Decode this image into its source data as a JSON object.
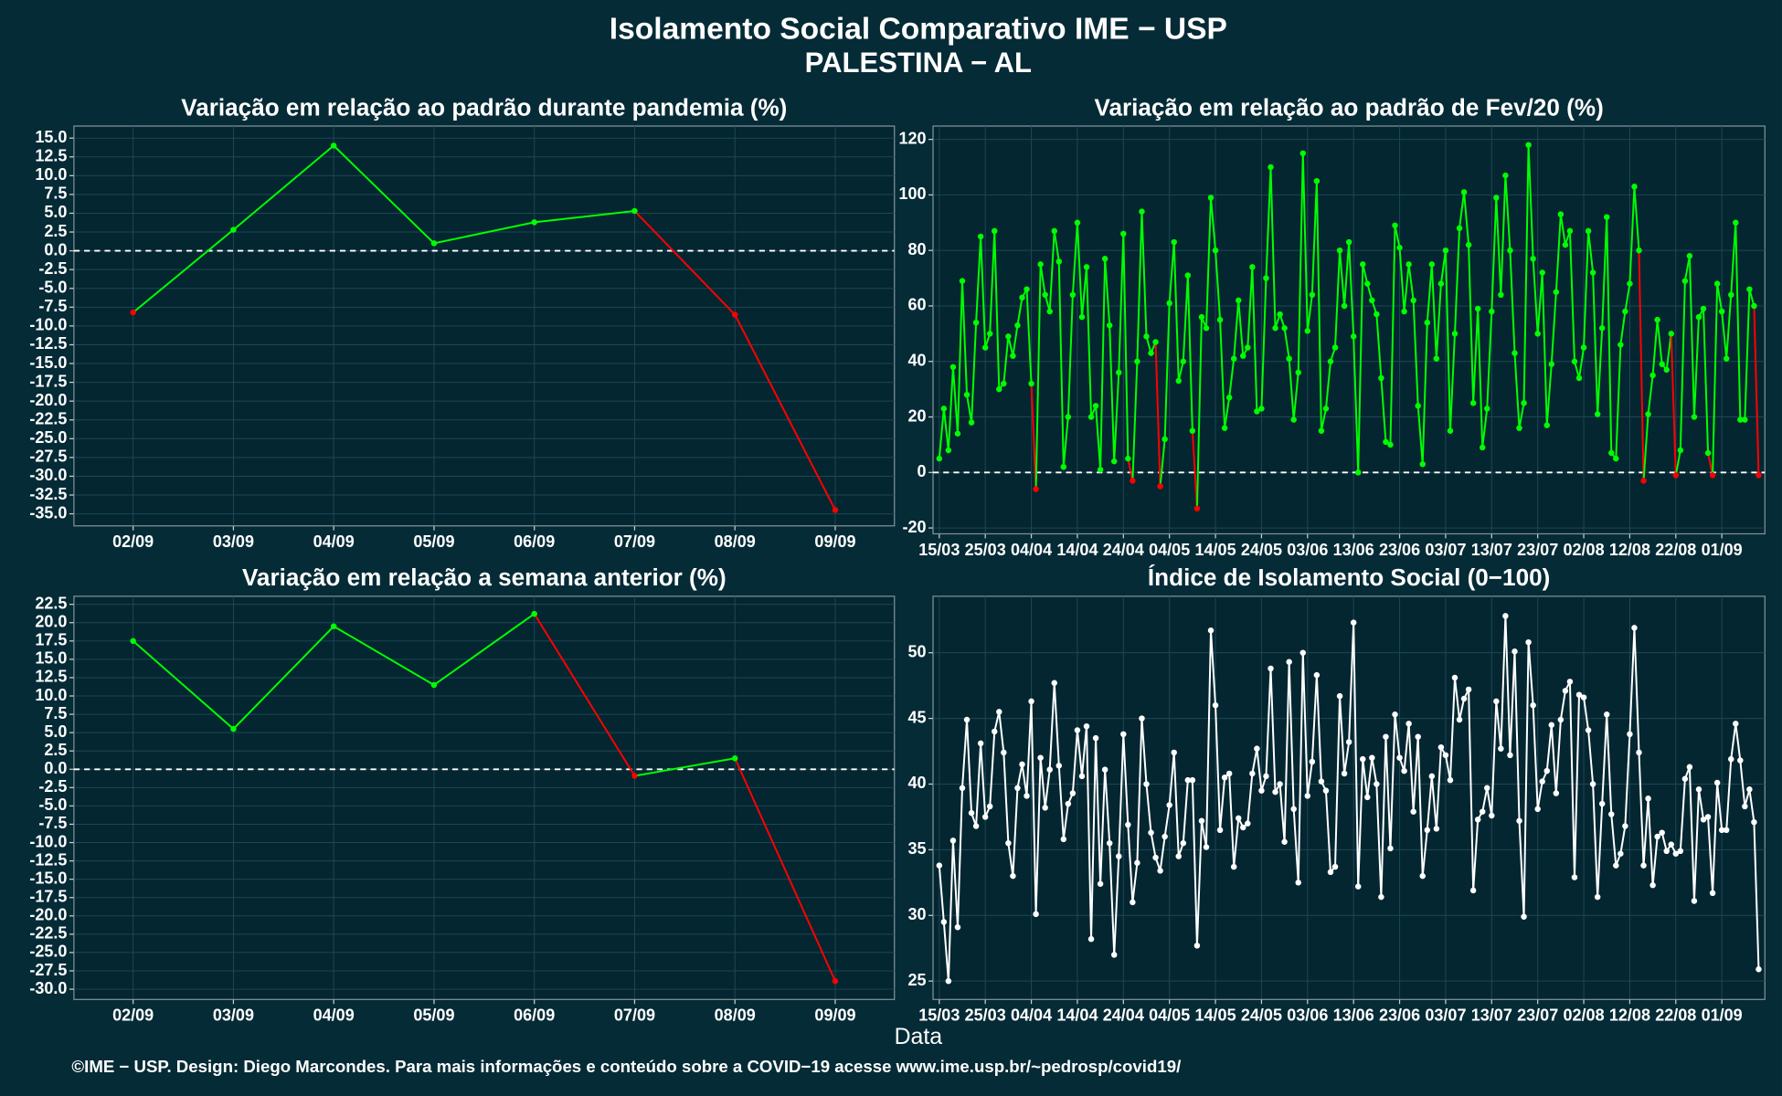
{
  "title": "Isolamento Social Comparativo IME − USP",
  "subtitle": "PALESTINA − AL",
  "x_label": "Data",
  "footer": "©IME − USP. Design: Diego Marcondes. Para mais informações e conteúdo sobre a COVID−19 acesse www.ime.usp.br/~pedrosp/covid19/",
  "chart_data": [
    {
      "type": "line",
      "title": "Variação em relação ao padrão durante pandemia (%)",
      "categories": [
        "02/09",
        "03/09",
        "04/09",
        "05/09",
        "06/09",
        "07/09",
        "08/09",
        "09/09"
      ],
      "values": [
        -8.2,
        2.8,
        14,
        1,
        3.8,
        5.3,
        -8.5,
        -34.5
      ],
      "positive_color": "#00ff00",
      "negative_color": "#ff0000",
      "reference_line": 0,
      "grid": true,
      "ylim": [
        -36.6,
        16.6
      ],
      "yticks": [
        {
          "value": 15,
          "label": "15.0"
        },
        12.5,
        {
          "value": 10,
          "label": "10.0"
        },
        7.5,
        {
          "value": 5,
          "label": "5.0"
        },
        2.5,
        {
          "value": 0,
          "label": "0.0"
        },
        -2.5,
        {
          "value": -5,
          "label": "-5.0"
        },
        -7.5,
        {
          "value": -10,
          "label": "-10.0"
        },
        -12.5,
        {
          "value": -15,
          "label": "-15.0"
        },
        -17.5,
        {
          "value": -20,
          "label": "-20.0"
        },
        -22.5,
        {
          "value": -25,
          "label": "-25.0"
        },
        -27.5,
        {
          "value": -30,
          "label": "-30.0"
        },
        -32.5,
        {
          "value": -35,
          "label": "-35.0"
        }
      ]
    },
    {
      "type": "line",
      "title": "Variação em relação ao padrão de Fev/20 (%)",
      "categories": [
        "15/03",
        null,
        null,
        null,
        null,
        null,
        null,
        null,
        null,
        null,
        "25/03",
        null,
        null,
        null,
        null,
        null,
        null,
        null,
        null,
        null,
        "04/04",
        null,
        null,
        null,
        null,
        null,
        null,
        null,
        null,
        null,
        "14/04",
        null,
        null,
        null,
        null,
        null,
        null,
        null,
        null,
        null,
        "24/04",
        null,
        null,
        null,
        null,
        null,
        null,
        null,
        null,
        null,
        "04/05",
        null,
        null,
        null,
        null,
        null,
        null,
        null,
        null,
        null,
        "14/05",
        null,
        null,
        null,
        null,
        null,
        null,
        null,
        null,
        null,
        "24/05",
        null,
        null,
        null,
        null,
        null,
        null,
        null,
        null,
        null,
        "03/06",
        null,
        null,
        null,
        null,
        null,
        null,
        null,
        null,
        null,
        "13/06",
        null,
        null,
        null,
        null,
        null,
        null,
        null,
        null,
        null,
        "23/06",
        null,
        null,
        null,
        null,
        null,
        null,
        null,
        null,
        null,
        "03/07",
        null,
        null,
        null,
        null,
        null,
        null,
        null,
        null,
        null,
        "13/07",
        null,
        null,
        null,
        null,
        null,
        null,
        null,
        null,
        null,
        "23/07",
        null,
        null,
        null,
        null,
        null,
        null,
        null,
        null,
        null,
        "02/08",
        null,
        null,
        null,
        null,
        null,
        null,
        null,
        null,
        null,
        "12/08",
        null,
        null,
        null,
        null,
        null,
        null,
        null,
        null,
        null,
        "22/08",
        null,
        null,
        null,
        null,
        null,
        null,
        null,
        null,
        null,
        "01/09",
        null,
        null,
        null,
        null,
        null,
        null,
        null,
        null
      ],
      "values": [
        5,
        23,
        8,
        38,
        14,
        69,
        28,
        18,
        54,
        85,
        45,
        50,
        87,
        30,
        32,
        49,
        42,
        53,
        63,
        66,
        32,
        -6,
        75,
        64,
        58,
        87,
        76,
        2,
        20,
        64,
        90,
        56,
        74,
        20,
        24,
        1,
        77,
        53,
        4,
        36,
        86,
        5,
        -3,
        40,
        94,
        49,
        43,
        47,
        -5,
        12,
        61,
        83,
        33,
        40,
        71,
        15,
        -13,
        56,
        52,
        99,
        80,
        55,
        16,
        27,
        41,
        62,
        42,
        45,
        74,
        22,
        23,
        70,
        110,
        52,
        57,
        52,
        41,
        19,
        36,
        115,
        51,
        64,
        105,
        15,
        23,
        40,
        45,
        80,
        60,
        83,
        49,
        0,
        75,
        68,
        62,
        57,
        34,
        11,
        10,
        89,
        81,
        58,
        75,
        62,
        24,
        3,
        54,
        75,
        41,
        68,
        80,
        15,
        50,
        88,
        101,
        82,
        25,
        59,
        9,
        23,
        58,
        99,
        64,
        107,
        80,
        43,
        16,
        25,
        118,
        77,
        50,
        72,
        17,
        39,
        65,
        93,
        82,
        87,
        40,
        34,
        45,
        87,
        72,
        21,
        52,
        92,
        7,
        5,
        46,
        58,
        68,
        103,
        80,
        -3,
        21,
        35,
        55,
        39,
        37,
        50,
        -1,
        8,
        69,
        78,
        20,
        56,
        59,
        7,
        -1,
        68,
        58,
        41,
        64,
        90,
        19,
        19,
        66,
        60,
        -1
      ],
      "positive_color": "#00ff00",
      "negative_color": "#ff0000",
      "reference_line": 0,
      "grid": true,
      "ylim": [
        -22.1,
        124.8
      ],
      "yticks": [
        -20,
        0,
        20,
        40,
        60,
        80,
        100,
        120
      ]
    },
    {
      "type": "line",
      "title": "Variação em relação a semana anterior (%)",
      "categories": [
        "02/09",
        "03/09",
        "04/09",
        "05/09",
        "06/09",
        "07/09",
        "08/09",
        "09/09"
      ],
      "values": [
        17.5,
        5.5,
        19.5,
        11.5,
        21.2,
        -0.9,
        1.5,
        -28.9
      ],
      "positive_color": "#00ff00",
      "negative_color": "#ff0000",
      "reference_line": 0,
      "grid": true,
      "ylim": [
        -31.4,
        23.6
      ],
      "yticks": [
        22.5,
        {
          "value": 20,
          "label": "20.0"
        },
        17.5,
        {
          "value": 15,
          "label": "15.0"
        },
        12.5,
        {
          "value": 10,
          "label": "10.0"
        },
        7.5,
        {
          "value": 5,
          "label": "5.0"
        },
        2.5,
        {
          "value": 0,
          "label": "0.0"
        },
        -2.5,
        {
          "value": -5,
          "label": "-5.0"
        },
        -7.5,
        {
          "value": -10,
          "label": "-10.0"
        },
        -12.5,
        {
          "value": -15,
          "label": "-15.0"
        },
        -17.5,
        {
          "value": -20,
          "label": "-20.0"
        },
        -22.5,
        {
          "value": -25,
          "label": "-25.0"
        },
        -27.5,
        {
          "value": -30,
          "label": "-30.0"
        }
      ]
    },
    {
      "type": "line",
      "title": "Índice de Isolamento Social (0−100)",
      "categories": [
        "15/03",
        null,
        null,
        null,
        null,
        null,
        null,
        null,
        null,
        null,
        "25/03",
        null,
        null,
        null,
        null,
        null,
        null,
        null,
        null,
        null,
        "04/04",
        null,
        null,
        null,
        null,
        null,
        null,
        null,
        null,
        null,
        "14/04",
        null,
        null,
        null,
        null,
        null,
        null,
        null,
        null,
        null,
        "24/04",
        null,
        null,
        null,
        null,
        null,
        null,
        null,
        null,
        null,
        "04/05",
        null,
        null,
        null,
        null,
        null,
        null,
        null,
        null,
        null,
        "14/05",
        null,
        null,
        null,
        null,
        null,
        null,
        null,
        null,
        null,
        "24/05",
        null,
        null,
        null,
        null,
        null,
        null,
        null,
        null,
        null,
        "03/06",
        null,
        null,
        null,
        null,
        null,
        null,
        null,
        null,
        null,
        "13/06",
        null,
        null,
        null,
        null,
        null,
        null,
        null,
        null,
        null,
        "23/06",
        null,
        null,
        null,
        null,
        null,
        null,
        null,
        null,
        null,
        "03/07",
        null,
        null,
        null,
        null,
        null,
        null,
        null,
        null,
        null,
        "13/07",
        null,
        null,
        null,
        null,
        null,
        null,
        null,
        null,
        null,
        "23/07",
        null,
        null,
        null,
        null,
        null,
        null,
        null,
        null,
        null,
        "02/08",
        null,
        null,
        null,
        null,
        null,
        null,
        null,
        null,
        null,
        "12/08",
        null,
        null,
        null,
        null,
        null,
        null,
        null,
        null,
        null,
        "22/08",
        null,
        null,
        null,
        null,
        null,
        null,
        null,
        null,
        null,
        "01/09",
        null,
        null,
        null,
        null,
        null,
        null,
        null,
        null
      ],
      "values": [
        33.8,
        29.5,
        25,
        35.7,
        29.1,
        39.7,
        44.9,
        37.8,
        36.8,
        43.1,
        37.5,
        38.3,
        44,
        45.5,
        42.4,
        35.5,
        33,
        39.7,
        41.5,
        39.1,
        46.3,
        30.1,
        42,
        38.2,
        41.1,
        47.7,
        41.4,
        35.8,
        38.5,
        39.3,
        44.1,
        40.6,
        44.4,
        28.2,
        43.5,
        32.4,
        41.1,
        35.5,
        27,
        34.5,
        43.8,
        36.9,
        31,
        34,
        45,
        40,
        36.3,
        34.4,
        33.4,
        36,
        38.4,
        42.4,
        34.5,
        35.5,
        40.3,
        40.3,
        27.7,
        37.2,
        35.2,
        51.7,
        46,
        36.5,
        40.5,
        40.8,
        33.7,
        37.4,
        36.7,
        37,
        40.8,
        42.7,
        39.5,
        40.6,
        48.8,
        39.4,
        40,
        35.6,
        49.3,
        38.1,
        32.5,
        50,
        39.1,
        41.7,
        48.3,
        40.2,
        39.5,
        33.3,
        33.7,
        46.7,
        40.8,
        43.2,
        52.3,
        32.2,
        41.9,
        39,
        42,
        40,
        31.4,
        43.6,
        35.1,
        45.3,
        42,
        41,
        44.6,
        37.9,
        43.6,
        33,
        36.5,
        40.6,
        36.6,
        42.8,
        42.2,
        40.3,
        48.1,
        44.9,
        46.5,
        47.2,
        31.9,
        37.3,
        37.9,
        39.7,
        37.6,
        46.3,
        42.7,
        52.8,
        42.2,
        50.1,
        37.2,
        29.9,
        50.8,
        46,
        38.1,
        40.2,
        41,
        44.5,
        39.3,
        44.9,
        47.1,
        47.8,
        32.9,
        46.8,
        46.6,
        44.1,
        40,
        31.4,
        38.5,
        45.3,
        37.7,
        33.8,
        34.7,
        36.8,
        43.8,
        51.9,
        42.4,
        33.8,
        38.9,
        32.3,
        36,
        36.3,
        34.9,
        35.4,
        34.7,
        34.9,
        40.4,
        41.3,
        31.1,
        39.6,
        37.3,
        37.5,
        31.7,
        40.1,
        36.5,
        36.5,
        41.9,
        44.6,
        41.8,
        38.3,
        39.6,
        37.1,
        25.9
      ],
      "color": "#ffffff",
      "grid": true,
      "ylim": [
        23.6,
        54.3
      ],
      "yticks": [
        25,
        30,
        35,
        40,
        45,
        50
      ]
    }
  ]
}
